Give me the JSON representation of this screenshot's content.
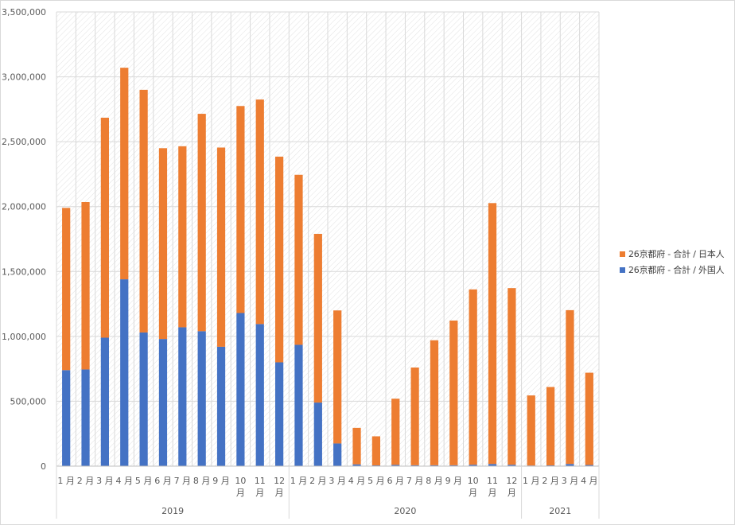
{
  "chart_data": {
    "type": "bar",
    "stacked": true,
    "y_ticks": [
      "0",
      "500,000",
      "1,000,000",
      "1,500,000",
      "2,000,000",
      "2,500,000",
      "3,000,000",
      "3,500,000"
    ],
    "ylim": [
      0,
      3500000
    ],
    "grid": true,
    "legend_position": "right",
    "groups": [
      {
        "label": "2019",
        "months": [
          "1 月",
          "2 月",
          "3 月",
          "4 月",
          "5 月",
          "6 月",
          "7 月",
          "8 月",
          "9 月",
          "10 月",
          "11 月",
          "12 月"
        ]
      },
      {
        "label": "2020",
        "months": [
          "1 月",
          "2 月",
          "3 月",
          "4 月",
          "5 月",
          "6 月",
          "7 月",
          "8 月",
          "9 月",
          "10 月",
          "11 月",
          "12 月"
        ]
      },
      {
        "label": "2021",
        "months": [
          "1 月",
          "2 月",
          "3 月",
          "4 月"
        ]
      }
    ],
    "series": [
      {
        "name": "26京都府 - 合計 / 外国人",
        "color": "#4472c4",
        "values": [
          740000,
          745000,
          990000,
          1440000,
          1030000,
          980000,
          1070000,
          1040000,
          920000,
          1180000,
          1095000,
          800000,
          935000,
          490000,
          175000,
          14000,
          6000,
          10000,
          7000,
          7000,
          7000,
          11000,
          17000,
          11000,
          5000,
          6000,
          17000,
          9000
        ]
      },
      {
        "name": "26京都府 - 合計 / 日本人",
        "color": "#ed7d31",
        "values": [
          1250000,
          1290000,
          1695000,
          1630000,
          1870000,
          1470000,
          1395000,
          1675000,
          1535000,
          1595000,
          1730000,
          1585000,
          1310000,
          1300000,
          1025000,
          281000,
          224000,
          510000,
          753000,
          963000,
          1115000,
          1351000,
          2010000,
          1361000,
          540000,
          604000,
          1185000,
          711000
        ]
      }
    ],
    "legend_order": [
      1,
      0
    ]
  }
}
